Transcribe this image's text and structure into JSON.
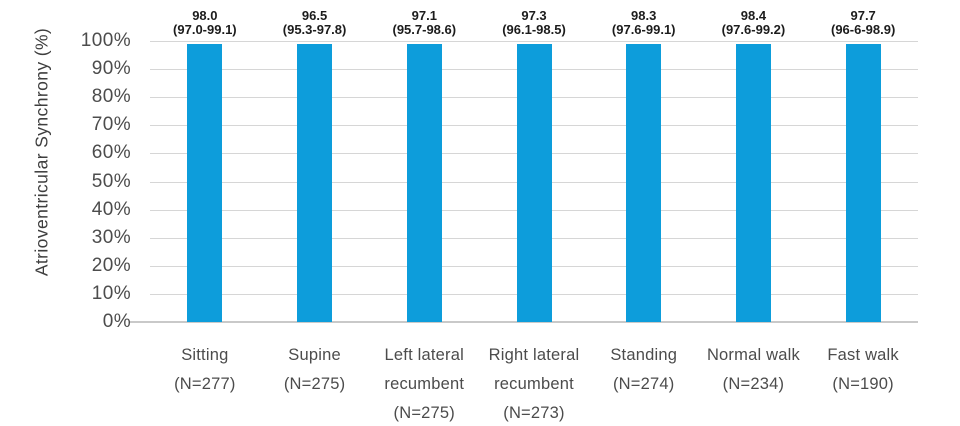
{
  "chart_data": {
    "type": "bar",
    "title": "",
    "xlabel": "",
    "ylabel": "Atrioventricular Synchrony (%)",
    "ylim": [
      0,
      100
    ],
    "yticks": [
      "0%",
      "10%",
      "20%",
      "30%",
      "40%",
      "50%",
      "60%",
      "70%",
      "80%",
      "90%",
      "100%"
    ],
    "grid": true,
    "legend": "none",
    "bar_color": "#0d9ddb",
    "bars_drawn_full_height": true,
    "categories": [
      "Sitting (N=277)",
      "Supine (N=275)",
      "Left lateral recumbent (N=275)",
      "Right lateral recumbent (N=273)",
      "Standing (N=274)",
      "Normal walk (N=234)",
      "Fast walk (N=190)"
    ],
    "category_lines": [
      [
        "Sitting",
        "(N=277)"
      ],
      [
        "Supine",
        "(N=275)"
      ],
      [
        "Left lateral",
        "recumbent",
        "(N=275)"
      ],
      [
        "Right lateral",
        "recumbent",
        "(N=273)"
      ],
      [
        "Standing",
        "(N=274)"
      ],
      [
        "Normal walk",
        "(N=234)"
      ],
      [
        "Fast walk",
        "(N=190)"
      ]
    ],
    "values": [
      98.0,
      96.5,
      97.1,
      97.3,
      98.3,
      98.4,
      97.7
    ],
    "value_labels": [
      "98.0",
      "96.5",
      "97.1",
      "97.3",
      "98.3",
      "98.4",
      "97.7"
    ],
    "ci_labels": [
      "(97.0-99.1)",
      "(95.3-97.8)",
      "(95.7-98.6)",
      "(96.1-98.5)",
      "(97.6-99.1)",
      "(97.6-99.2)",
      "(96-6-98.9)"
    ]
  },
  "colors": {
    "bar": "#0d9ddb",
    "gridline": "#d6d6d6",
    "baseline": "#c9c9c9",
    "axis_text": "#4c4c4c",
    "value_text": "#1c1c1c"
  }
}
